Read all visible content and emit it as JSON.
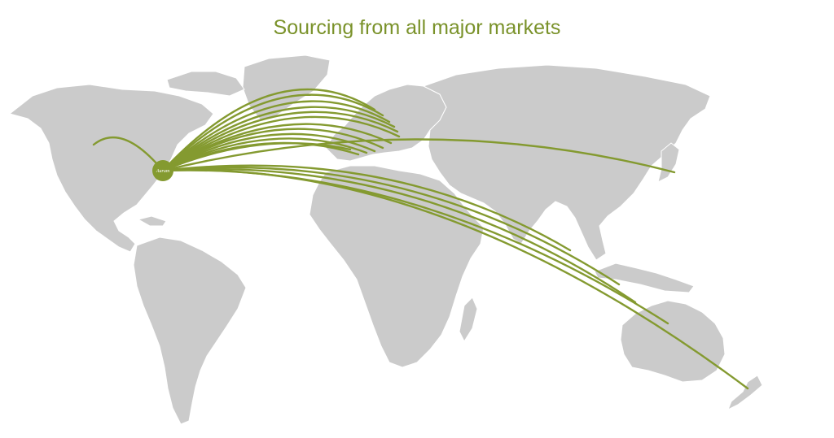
{
  "title": "Sourcing from all major markets",
  "colors": {
    "title": "#7a922a",
    "route": "#849a30",
    "land": "#cbcbcb",
    "hub": "#849a30",
    "hub_text": "#ffffff"
  },
  "hub": {
    "icon": "company-logo-marker",
    "label": "Aurum"
  },
  "routes": [
    {
      "destination": "Western United States"
    },
    {
      "destination": "Northern Europe"
    },
    {
      "destination": "Northern Europe"
    },
    {
      "destination": "Northern Europe"
    },
    {
      "destination": "Northern Europe"
    },
    {
      "destination": "Northern Europe"
    },
    {
      "destination": "Northern Europe"
    },
    {
      "destination": "Central Europe"
    },
    {
      "destination": "Central Europe"
    },
    {
      "destination": "Central Europe"
    },
    {
      "destination": "Central Europe"
    },
    {
      "destination": "Central Europe"
    },
    {
      "destination": "Central Europe"
    },
    {
      "destination": "Japan"
    },
    {
      "destination": "India"
    },
    {
      "destination": "Southeast Asia"
    },
    {
      "destination": "Southeast Asia"
    },
    {
      "destination": "Australia"
    },
    {
      "destination": "New Zealand"
    }
  ]
}
